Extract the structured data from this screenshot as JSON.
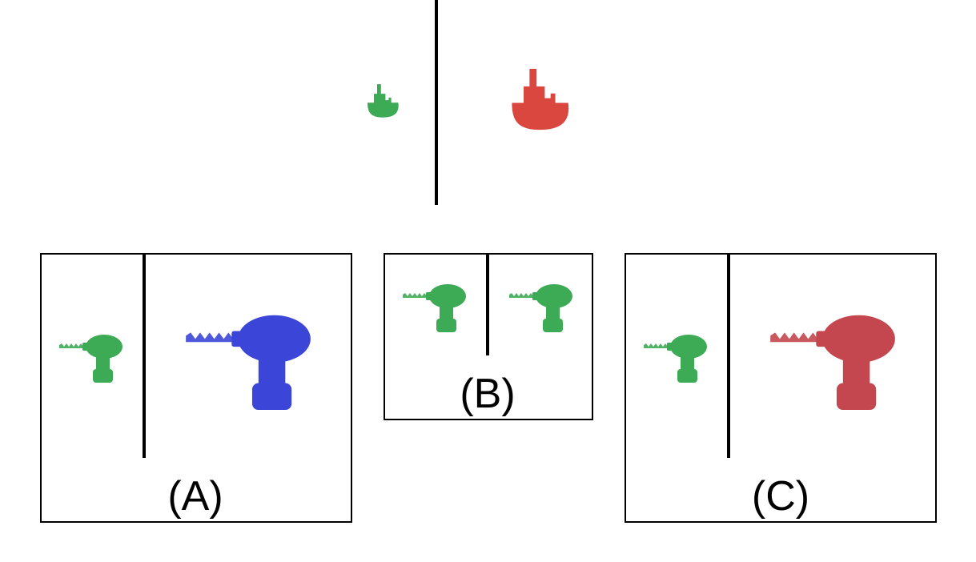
{
  "example": {
    "left_object": {
      "icon": "boat-icon",
      "color": "#3daa55",
      "scale": "small"
    },
    "right_object": {
      "icon": "boat-icon",
      "color": "#d9473f",
      "scale": "large"
    }
  },
  "options": [
    {
      "label": "(A)",
      "left_object": {
        "icon": "drill-icon",
        "color": "#3daa55",
        "scale": "small"
      },
      "right_object": {
        "icon": "drill-icon",
        "color": "#3b46d8",
        "scale": "large"
      }
    },
    {
      "label": "(B)",
      "left_object": {
        "icon": "drill-icon",
        "color": "#3daa55",
        "scale": "small"
      },
      "right_object": {
        "icon": "drill-icon",
        "color": "#3daa55",
        "scale": "small"
      }
    },
    {
      "label": "(C)",
      "left_object": {
        "icon": "drill-icon",
        "color": "#3daa55",
        "scale": "small"
      },
      "right_object": {
        "icon": "drill-icon",
        "color": "#c4464e",
        "scale": "large"
      }
    }
  ]
}
